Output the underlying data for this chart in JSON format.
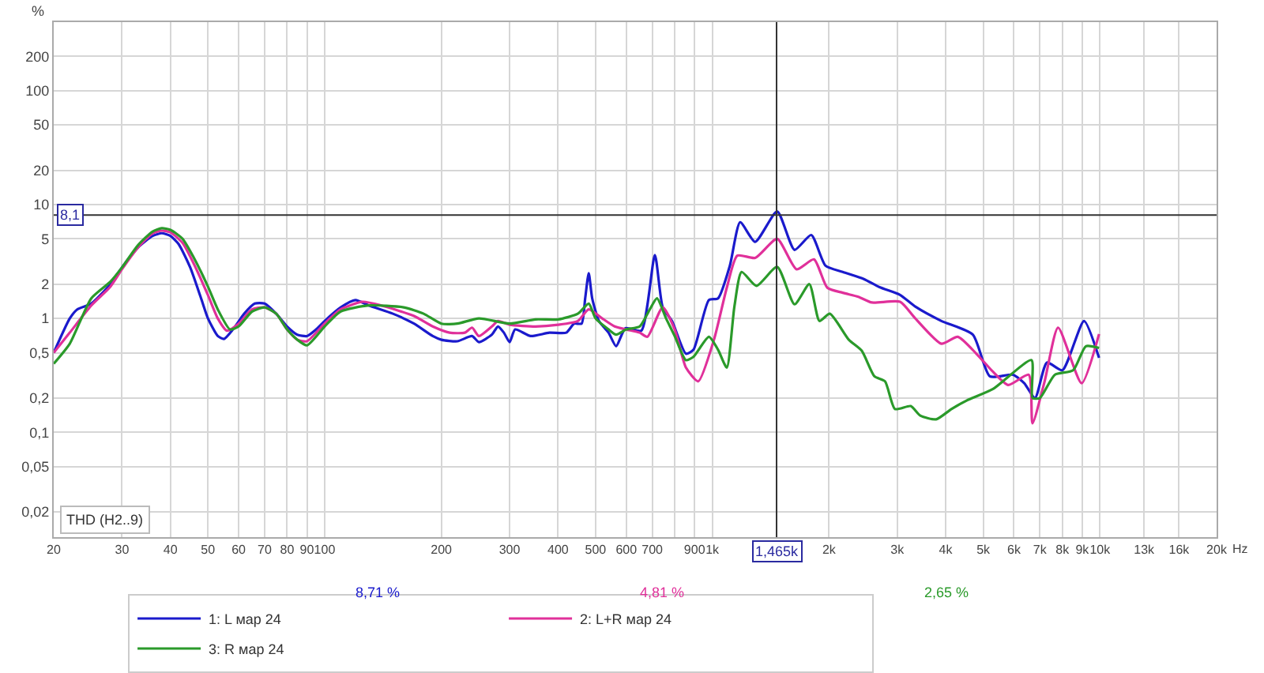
{
  "chart_data": {
    "type": "line",
    "ylabel": "%",
    "log": "xy",
    "grid": true,
    "legend": "bottom",
    "line_style": "solid",
    "marker": "none",
    "xlim": [
      20,
      20000
    ],
    "ylim": [
      0.012,
      400
    ],
    "xticks": [
      20,
      30,
      40,
      50,
      60,
      70,
      80,
      90,
      100,
      200,
      300,
      400,
      500,
      600,
      700,
      {
        "value": 800,
        "label": null
      },
      900,
      {
        "value": 1000,
        "label": "1k"
      },
      {
        "value": 2000,
        "label": "2k"
      },
      {
        "value": 3000,
        "label": "3k"
      },
      {
        "value": 4000,
        "label": "4k"
      },
      {
        "value": 5000,
        "label": "5k"
      },
      {
        "value": 6000,
        "label": "6k"
      },
      {
        "value": 7000,
        "label": "7k"
      },
      {
        "value": 8000,
        "label": "8k"
      },
      {
        "value": 9000,
        "label": "9k"
      },
      {
        "value": 10000,
        "label": "10k"
      },
      {
        "value": 13000,
        "label": "13k"
      },
      {
        "value": 16000,
        "label": "16k"
      },
      {
        "value": 20000,
        "label": "20k"
      }
    ],
    "xlabel": "Hz",
    "yticks": [
      {
        "value": 0.02,
        "label": "0,02"
      },
      {
        "value": 0.05,
        "label": "0,05"
      },
      {
        "value": 0.1,
        "label": "0,1"
      },
      {
        "value": 0.2,
        "label": "0,2"
      },
      {
        "value": 0.5,
        "label": "0,5"
      },
      1,
      2,
      5,
      10,
      20,
      50,
      100,
      200
    ],
    "ref_lines": [
      {
        "axis": "y",
        "value": 8.1,
        "label": "8,1",
        "color": "#333333"
      },
      {
        "axis": "x",
        "value": 1465,
        "label": "1,465k",
        "color": "#333333"
      }
    ],
    "annotations": [
      "THD (H2..9)",
      "8,71 %",
      "4,81 %",
      "2,65 %"
    ],
    "series": [
      {
        "name": "1: L мар 24",
        "color": "#1a1acc",
        "x": [
          20,
          22,
          23,
          25,
          28,
          30,
          33,
          36,
          38,
          40,
          42,
          45,
          48,
          50,
          53,
          55,
          58,
          62,
          66,
          70,
          75,
          80,
          85,
          90,
          95,
          100,
          110,
          120,
          130,
          150,
          170,
          190,
          200,
          220,
          240,
          250,
          270,
          280,
          290,
          300,
          310,
          340,
          380,
          420,
          440,
          460,
          470,
          480,
          490,
          510,
          540,
          565,
          597,
          656,
          711,
          745,
          787,
          855,
          894,
          980,
          1035,
          1110,
          1180,
          1290,
          1470,
          1630,
          1800,
          1960,
          2170,
          2460,
          2700,
          3050,
          3340,
          3900,
          4700,
          5200,
          5970,
          6380,
          6800,
          7300,
          8000,
          9100,
          9950
        ],
        "values": [
          0.5,
          1.0,
          1.2,
          1.35,
          2.0,
          2.8,
          4.2,
          5.3,
          5.6,
          5.3,
          4.5,
          2.8,
          1.5,
          1.0,
          0.7,
          0.66,
          0.8,
          1.1,
          1.35,
          1.35,
          1.1,
          0.85,
          0.72,
          0.7,
          0.8,
          0.95,
          1.25,
          1.45,
          1.3,
          1.1,
          0.9,
          0.7,
          0.65,
          0.63,
          0.7,
          0.62,
          0.72,
          0.85,
          0.75,
          0.62,
          0.8,
          0.7,
          0.75,
          0.75,
          0.9,
          0.9,
          1.5,
          2.5,
          1.5,
          0.95,
          0.75,
          0.57,
          0.82,
          0.78,
          3.6,
          1.25,
          0.95,
          0.49,
          0.53,
          1.45,
          1.5,
          2.9,
          7.0,
          4.7,
          8.7,
          4.0,
          5.4,
          2.9,
          2.56,
          2.22,
          1.88,
          1.61,
          1.27,
          0.95,
          0.72,
          0.31,
          0.32,
          0.27,
          0.2,
          0.41,
          0.35,
          0.95,
          0.45
        ]
      },
      {
        "name": "2: L+R мар 24",
        "color": "#e0309a",
        "x": [
          20,
          22,
          25,
          28,
          30,
          33,
          36,
          38,
          40,
          43,
          46,
          50,
          53,
          56,
          60,
          65,
          70,
          75,
          80,
          85,
          90,
          100,
          110,
          125,
          140,
          170,
          190,
          210,
          230,
          240,
          250,
          270,
          280,
          300,
          350,
          400,
          450,
          480,
          520,
          560,
          600,
          650,
          680,
          745,
          800,
          855,
          920,
          1010,
          1090,
          1160,
          1290,
          1470,
          1650,
          1830,
          1980,
          2170,
          2380,
          2580,
          3050,
          3340,
          3900,
          4300,
          4800,
          5300,
          5800,
          6550,
          6700,
          7200,
          7800,
          8970,
          9950
        ],
        "values": [
          0.5,
          0.75,
          1.3,
          1.9,
          2.7,
          4.2,
          5.6,
          5.9,
          5.7,
          4.6,
          3.0,
          1.6,
          1.0,
          0.78,
          0.9,
          1.2,
          1.25,
          1.1,
          0.8,
          0.65,
          0.63,
          0.9,
          1.2,
          1.4,
          1.3,
          1.05,
          0.85,
          0.75,
          0.75,
          0.83,
          0.7,
          0.85,
          0.95,
          0.88,
          0.85,
          0.88,
          0.95,
          1.2,
          1.0,
          0.85,
          0.8,
          0.75,
          0.69,
          1.25,
          0.8,
          0.37,
          0.28,
          0.65,
          1.86,
          3.56,
          3.4,
          5.0,
          2.7,
          3.3,
          1.86,
          1.68,
          1.55,
          1.38,
          1.4,
          1.0,
          0.6,
          0.69,
          0.49,
          0.34,
          0.26,
          0.32,
          0.12,
          0.28,
          0.83,
          0.27,
          0.73
        ]
      },
      {
        "name": "3: R мар 24",
        "color": "#2a9a2a",
        "x": [
          20,
          22,
          25,
          28,
          30,
          33,
          36,
          38,
          40,
          43,
          46,
          50,
          53,
          57,
          60,
          65,
          70,
          75,
          80,
          85,
          90,
          100,
          110,
          130,
          160,
          180,
          200,
          220,
          250,
          300,
          350,
          400,
          450,
          480,
          500,
          540,
          565,
          600,
          650,
          690,
          720,
          760,
          800,
          855,
          894,
          980,
          1035,
          1090,
          1140,
          1190,
          1300,
          1470,
          1630,
          1780,
          1890,
          2010,
          2250,
          2430,
          2620,
          2790,
          2960,
          3250,
          3440,
          3780,
          4140,
          4530,
          5300,
          6660,
          6700,
          7000,
          7650,
          8530,
          9200,
          9950
        ],
        "values": [
          0.4,
          0.6,
          1.5,
          2.1,
          2.8,
          4.4,
          5.8,
          6.2,
          6.0,
          5.0,
          3.4,
          1.9,
          1.2,
          0.8,
          0.85,
          1.15,
          1.25,
          1.1,
          0.8,
          0.65,
          0.58,
          0.85,
          1.15,
          1.3,
          1.25,
          1.1,
          0.9,
          0.9,
          1.0,
          0.9,
          0.98,
          0.98,
          1.1,
          1.35,
          1.0,
          0.8,
          0.72,
          0.8,
          0.85,
          1.2,
          1.5,
          1.0,
          0.7,
          0.43,
          0.46,
          0.69,
          0.53,
          0.37,
          1.26,
          2.56,
          1.93,
          2.84,
          1.33,
          2.0,
          0.95,
          1.1,
          0.65,
          0.52,
          0.31,
          0.28,
          0.16,
          0.17,
          0.14,
          0.13,
          0.16,
          0.19,
          0.24,
          0.43,
          0.2,
          0.2,
          0.32,
          0.35,
          0.57,
          0.55
        ]
      }
    ]
  }
}
